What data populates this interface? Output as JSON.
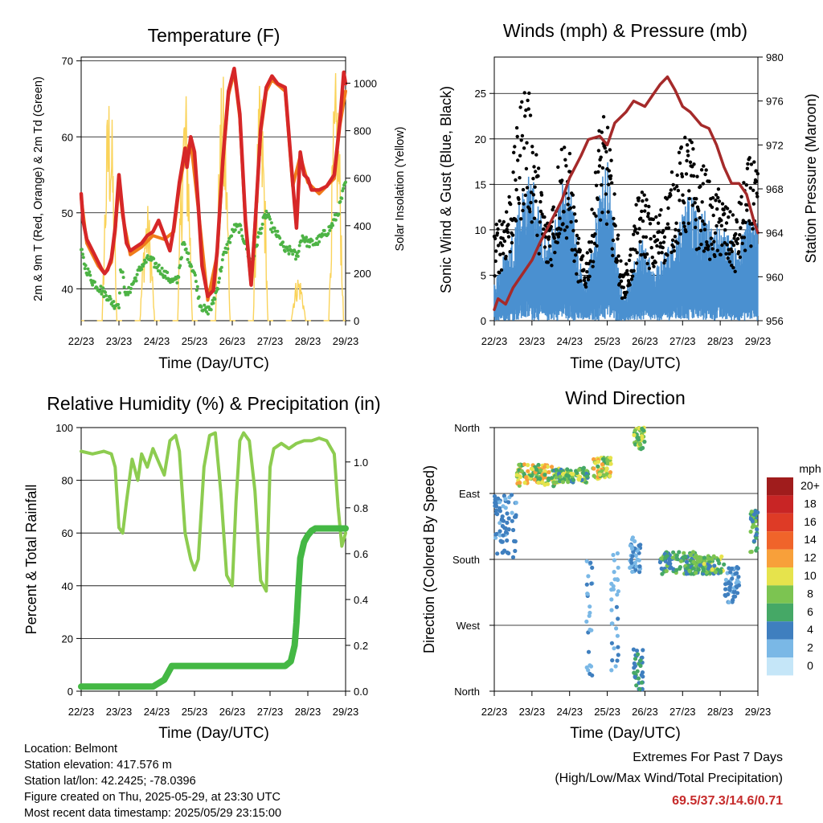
{
  "colors": {
    "temp2m": "#d62728",
    "temp9m": "#f07c1a",
    "dew": "#4db345",
    "solar": "#fad35a",
    "gust": "#000000",
    "wind": "#4a90d0",
    "pressure": "#a52a2a",
    "rh": "#8dcc50",
    "rain": "#44b844",
    "extremes_value": "#c62b2b"
  },
  "time_ticks": [
    "22/23",
    "23/23",
    "24/23",
    "25/23",
    "26/23",
    "27/23",
    "28/23",
    "29/23"
  ],
  "chart_data": [
    {
      "type": "line",
      "title": "Temperature (F)",
      "xlabel": "Time (Day/UTC)",
      "ylabel": "2m & 9m T (Red, Orange) & 2m Td (Green)",
      "y2label": "Solar Insolation (Yellow)",
      "x_ticks": [
        "22/23",
        "23/23",
        "24/23",
        "25/23",
        "26/23",
        "27/23",
        "28/23",
        "29/23"
      ],
      "ylim": [
        35.8,
        70.5
      ],
      "yticks": [
        40,
        50,
        60,
        70
      ],
      "y2lim": [
        0,
        1110
      ],
      "y2ticks": [
        0,
        200,
        400,
        600,
        800,
        1000
      ],
      "series": [
        {
          "name": "2m T",
          "color": "#d62728",
          "x": [
            0,
            0.05,
            0.15,
            0.3,
            0.45,
            0.55,
            0.62,
            0.7,
            0.8,
            0.9,
            1.0,
            1.1,
            1.2,
            1.3,
            1.45,
            1.6,
            1.75,
            1.9,
            2.05,
            2.2,
            2.35,
            2.45,
            2.6,
            2.75,
            2.8,
            2.9,
            3.0,
            3.1,
            3.2,
            3.35,
            3.5,
            3.6,
            3.75,
            3.9,
            4.05,
            4.2,
            4.35,
            4.5,
            4.6,
            4.75,
            4.9,
            5.05,
            5.2,
            5.4,
            5.6,
            5.7,
            5.8,
            5.9,
            6.0,
            6.1,
            6.3,
            6.5,
            6.7,
            6.85,
            6.95,
            7.0
          ],
          "y": [
            52.5,
            49,
            46.5,
            45,
            43.5,
            42.5,
            42,
            42.5,
            44,
            48,
            55,
            50,
            46,
            45,
            45.5,
            46,
            47,
            47.5,
            49,
            47,
            45,
            48,
            54,
            58.5,
            56,
            60,
            58,
            51,
            43,
            39,
            39.8,
            45,
            57,
            66,
            69,
            63,
            49,
            40.5,
            48,
            61,
            66.5,
            68,
            67,
            66.5,
            54,
            48,
            58,
            55,
            54.5,
            53,
            53,
            53.5,
            55,
            62,
            68.5,
            67
          ]
        },
        {
          "name": "9m T",
          "color": "#f07c1a",
          "x": [
            0,
            0.15,
            0.3,
            0.45,
            0.62,
            0.8,
            0.9,
            1.0,
            1.1,
            1.3,
            1.6,
            1.9,
            2.2,
            2.45,
            2.6,
            2.75,
            2.9,
            3.1,
            3.35,
            3.6,
            3.75,
            3.9,
            4.05,
            4.2,
            4.35,
            4.5,
            4.75,
            4.9,
            5.05,
            5.4,
            5.6,
            5.8,
            6.0,
            6.3,
            6.7,
            6.85,
            7.0
          ],
          "y": [
            52,
            46,
            44.5,
            43,
            42,
            43.5,
            47.5,
            54,
            49.5,
            44.5,
            45.5,
            47,
            46.5,
            47.5,
            53.5,
            57.5,
            59.5,
            50.5,
            38.5,
            44.5,
            56.5,
            65.5,
            68.5,
            62.5,
            48.5,
            40.5,
            60.5,
            66,
            67.5,
            66,
            53.5,
            57.5,
            54,
            52.5,
            54.5,
            61.5,
            66
          ]
        },
        {
          "name": "2m Td",
          "color": "#4db345",
          "x": [
            0,
            0.1,
            0.3,
            0.5,
            0.7,
            0.85,
            1.0,
            1.05,
            1.2,
            1.4,
            1.6,
            1.8,
            2.0,
            2.2,
            2.4,
            2.55,
            2.7,
            2.85,
            3.0,
            3.15,
            3.3,
            3.45,
            3.6,
            3.75,
            3.9,
            4.05,
            4.2,
            4.35,
            4.5,
            4.7,
            4.9,
            5.05,
            5.2,
            5.4,
            5.6,
            5.7,
            5.85,
            6.0,
            6.2,
            6.4,
            6.6,
            6.8,
            6.9,
            7.0
          ],
          "y": [
            45,
            43,
            41,
            40,
            39,
            38,
            38,
            43,
            39,
            41,
            43,
            44,
            43,
            42,
            41,
            41,
            46,
            44,
            42,
            38,
            37,
            37.5,
            40,
            44,
            46,
            48,
            48,
            46,
            43,
            47,
            50,
            48,
            47,
            45,
            45,
            44,
            47,
            46,
            46,
            47,
            48,
            50,
            52,
            54
          ]
        },
        {
          "name": "Solar",
          "color": "#fad35a",
          "axis": "y2",
          "peak_hour_utc": 17,
          "daily_peaks": [
            950,
            1020,
            500,
            1020,
            1050,
            1020,
            200,
            1060
          ]
        }
      ]
    },
    {
      "type": "line",
      "title": "Winds (mph) & Pressure (mb)",
      "xlabel": "Time (Day/UTC)",
      "ylabel": "Sonic Wind & Gust (Blue, Black)",
      "y2label": "Station Pressure (Maroon)",
      "x_ticks": [
        "22/23",
        "23/23",
        "24/23",
        "25/23",
        "26/23",
        "27/23",
        "28/23",
        "29/23"
      ],
      "ylim": [
        0,
        29
      ],
      "yticks": [
        0,
        5,
        10,
        15,
        20,
        25
      ],
      "y2lim": [
        956,
        980
      ],
      "y2ticks": [
        956,
        960,
        964,
        968,
        972,
        976,
        980
      ],
      "series": [
        {
          "name": "Wind",
          "color": "#4a90d0",
          "x": [
            0,
            0.2,
            0.4,
            0.6,
            0.8,
            1.0,
            1.2,
            1.4,
            1.6,
            1.8,
            2.0,
            2.2,
            2.4,
            2.6,
            2.8,
            3.0,
            3.2,
            3.4,
            3.6,
            3.8,
            4.0,
            4.2,
            4.4,
            4.6,
            4.8,
            5.0,
            5.2,
            5.4,
            5.6,
            5.8,
            6.0,
            6.2,
            6.4,
            6.6,
            6.8,
            7.0
          ],
          "y": [
            3,
            5,
            6,
            9,
            11,
            12,
            9,
            6,
            8,
            11,
            12,
            6,
            3,
            6,
            11,
            13,
            7,
            2,
            3,
            6,
            7,
            4,
            5,
            6,
            7,
            9,
            11,
            8,
            9,
            7,
            8,
            7,
            6,
            7,
            9,
            8
          ]
        },
        {
          "name": "Gust",
          "color": "#000000",
          "x": [
            0,
            0.2,
            0.4,
            0.6,
            0.8,
            1.0,
            1.2,
            1.4,
            1.6,
            1.8,
            2.0,
            2.2,
            2.4,
            2.6,
            2.8,
            3.0,
            3.2,
            3.4,
            3.6,
            3.8,
            4.0,
            4.2,
            4.4,
            4.6,
            4.8,
            5.0,
            5.2,
            5.4,
            5.6,
            5.8,
            6.0,
            6.2,
            6.4,
            6.6,
            6.8,
            7.0
          ],
          "y": [
            8,
            10,
            12,
            17,
            22,
            19,
            13,
            9,
            12,
            17,
            15,
            8,
            5,
            10,
            18,
            18,
            11,
            4,
            6,
            11,
            12,
            9,
            10,
            12,
            14,
            16,
            17,
            13,
            14,
            11,
            12,
            10,
            9,
            12,
            15,
            13
          ]
        },
        {
          "name": "Pressure",
          "color": "#a52a2a",
          "axis": "y2",
          "x": [
            0,
            0.1,
            0.3,
            0.5,
            0.7,
            1.0,
            1.2,
            1.5,
            1.8,
            2.0,
            2.3,
            2.5,
            2.8,
            3.0,
            3.2,
            3.5,
            3.7,
            4.0,
            4.2,
            4.4,
            4.6,
            4.8,
            5.0,
            5.2,
            5.5,
            5.7,
            5.9,
            6.1,
            6.3,
            6.5,
            6.7,
            6.9,
            7.0
          ],
          "y": [
            957,
            958,
            957.5,
            959,
            960,
            961.5,
            963,
            965,
            967,
            969,
            971,
            972.5,
            972.8,
            972,
            974,
            975,
            976,
            975.5,
            976.5,
            977.5,
            978.2,
            977,
            975.5,
            975,
            973.8,
            973.5,
            972,
            970,
            968.5,
            968.5,
            967.5,
            965,
            964
          ]
        }
      ]
    },
    {
      "type": "line",
      "title": "Relative Humidity (%) & Precipitation (in)",
      "xlabel": "Time (Day/UTC)",
      "ylabel": "Percent & Total Rainfall",
      "x_ticks": [
        "22/23",
        "23/23",
        "24/23",
        "25/23",
        "26/23",
        "27/23",
        "28/23",
        "29/23"
      ],
      "ylim": [
        0,
        100
      ],
      "yticks": [
        0,
        20,
        40,
        60,
        80,
        100
      ],
      "y2lim": [
        0,
        1.15
      ],
      "y2ticks": [
        0.0,
        0.2,
        0.4,
        0.6,
        0.8,
        1.0
      ],
      "series": [
        {
          "name": "RH",
          "color": "#8dcc50",
          "x": [
            0,
            0.3,
            0.6,
            0.8,
            0.9,
            1.0,
            1.1,
            1.2,
            1.35,
            1.5,
            1.6,
            1.75,
            1.9,
            2.05,
            2.2,
            2.35,
            2.5,
            2.6,
            2.75,
            2.9,
            3.0,
            3.1,
            3.25,
            3.4,
            3.55,
            3.7,
            3.85,
            4.0,
            4.1,
            4.2,
            4.3,
            4.45,
            4.6,
            4.75,
            4.9,
            5.0,
            5.1,
            5.3,
            5.5,
            5.7,
            5.9,
            6.1,
            6.3,
            6.5,
            6.7,
            6.8,
            6.9,
            7.0
          ],
          "y": [
            91,
            90,
            91,
            90,
            85,
            62,
            60,
            72,
            88,
            80,
            90,
            85,
            92,
            87,
            82,
            95,
            97,
            91,
            60,
            50,
            46,
            50,
            85,
            97,
            98,
            75,
            44,
            40,
            72,
            95,
            98,
            95,
            76,
            42,
            38,
            85,
            92,
            94,
            92,
            94,
            95,
            95,
            96,
            95,
            90,
            70,
            55,
            60
          ]
        },
        {
          "name": "Total Rainfall",
          "color": "#44b844",
          "axis": "y2",
          "x": [
            0,
            1.9,
            2.1,
            2.2,
            2.3,
            2.4,
            5.4,
            5.55,
            5.65,
            5.7,
            5.75,
            5.8,
            5.9,
            6.0,
            6.1,
            6.2,
            7.0
          ],
          "y": [
            0.02,
            0.02,
            0.04,
            0.05,
            0.08,
            0.11,
            0.11,
            0.13,
            0.2,
            0.3,
            0.45,
            0.58,
            0.65,
            0.68,
            0.7,
            0.71,
            0.71
          ]
        }
      ]
    },
    {
      "type": "scatter",
      "title": "Wind Direction",
      "xlabel": "Time (Day/UTC)",
      "ylabel": "Direction (Colored By Speed)",
      "x_ticks": [
        "22/23",
        "23/23",
        "24/23",
        "25/23",
        "26/23",
        "27/23",
        "28/23",
        "29/23"
      ],
      "yticks": [
        "North",
        "West",
        "South",
        "East",
        "North"
      ],
      "ylim": [
        0,
        360
      ],
      "colorbar": {
        "title": "mph",
        "labels": [
          "20+",
          "18",
          "16",
          "14",
          "12",
          "10",
          "8",
          "6",
          "4",
          "2",
          "0"
        ],
        "colors": [
          "#a01c1c",
          "#c82525",
          "#de3b26",
          "#f0642a",
          "#f8a03a",
          "#e6e34c",
          "#7cc451",
          "#45a866",
          "#3f7fbf",
          "#7ab8e6",
          "#c5e6f8"
        ]
      },
      "clusters": [
        {
          "x": [
            0.0,
            0.6
          ],
          "y": [
            180,
            270
          ],
          "speed": [
            2,
            5
          ]
        },
        {
          "x": [
            0.6,
            1.6
          ],
          "y": [
            280,
            310
          ],
          "speed": [
            5,
            13
          ]
        },
        {
          "x": [
            1.6,
            2.5
          ],
          "y": [
            285,
            305
          ],
          "speed": [
            4,
            10
          ]
        },
        {
          "x": [
            2.6,
            3.1
          ],
          "y": [
            290,
            320
          ],
          "speed": [
            6,
            13
          ]
        },
        {
          "x": [
            2.45,
            2.6
          ],
          "y": [
            5,
            180
          ],
          "speed": [
            1,
            4
          ]
        },
        {
          "x": [
            3.1,
            3.3
          ],
          "y": [
            20,
            200
          ],
          "speed": [
            1,
            4
          ]
        },
        {
          "x": [
            3.7,
            4.0
          ],
          "y": [
            330,
            360
          ],
          "speed": [
            5,
            10
          ]
        },
        {
          "x": [
            3.7,
            3.95
          ],
          "y": [
            0,
            60
          ],
          "speed": [
            3,
            7
          ]
        },
        {
          "x": [
            3.6,
            3.9
          ],
          "y": [
            160,
            210
          ],
          "speed": [
            1,
            5
          ]
        },
        {
          "x": [
            4.4,
            5.4
          ],
          "y": [
            160,
            190
          ],
          "speed": [
            3,
            9
          ]
        },
        {
          "x": [
            5.4,
            6.1
          ],
          "y": [
            160,
            185
          ],
          "speed": [
            4,
            10
          ]
        },
        {
          "x": [
            6.1,
            6.5
          ],
          "y": [
            120,
            170
          ],
          "speed": [
            2,
            5
          ]
        },
        {
          "x": [
            6.8,
            7.0
          ],
          "y": [
            190,
            250
          ],
          "speed": [
            4,
            9
          ]
        }
      ]
    }
  ],
  "info": {
    "location": "Location: Belmont",
    "elevation": "Station elevation: 417.576 m",
    "latlon": "Station lat/lon: 42.2425; -78.0396",
    "created": "Figure created on Thu, 2025-05-29, at 23:30 UTC",
    "latest": "Most recent data timestamp: 2025/05/29 23:15:00"
  },
  "extremes": {
    "title": "Extremes For Past 7 Days",
    "subtitle": "(High/Low/Max Wind/Total Precipitation)",
    "values": "69.5/37.3/14.6/0.71"
  }
}
